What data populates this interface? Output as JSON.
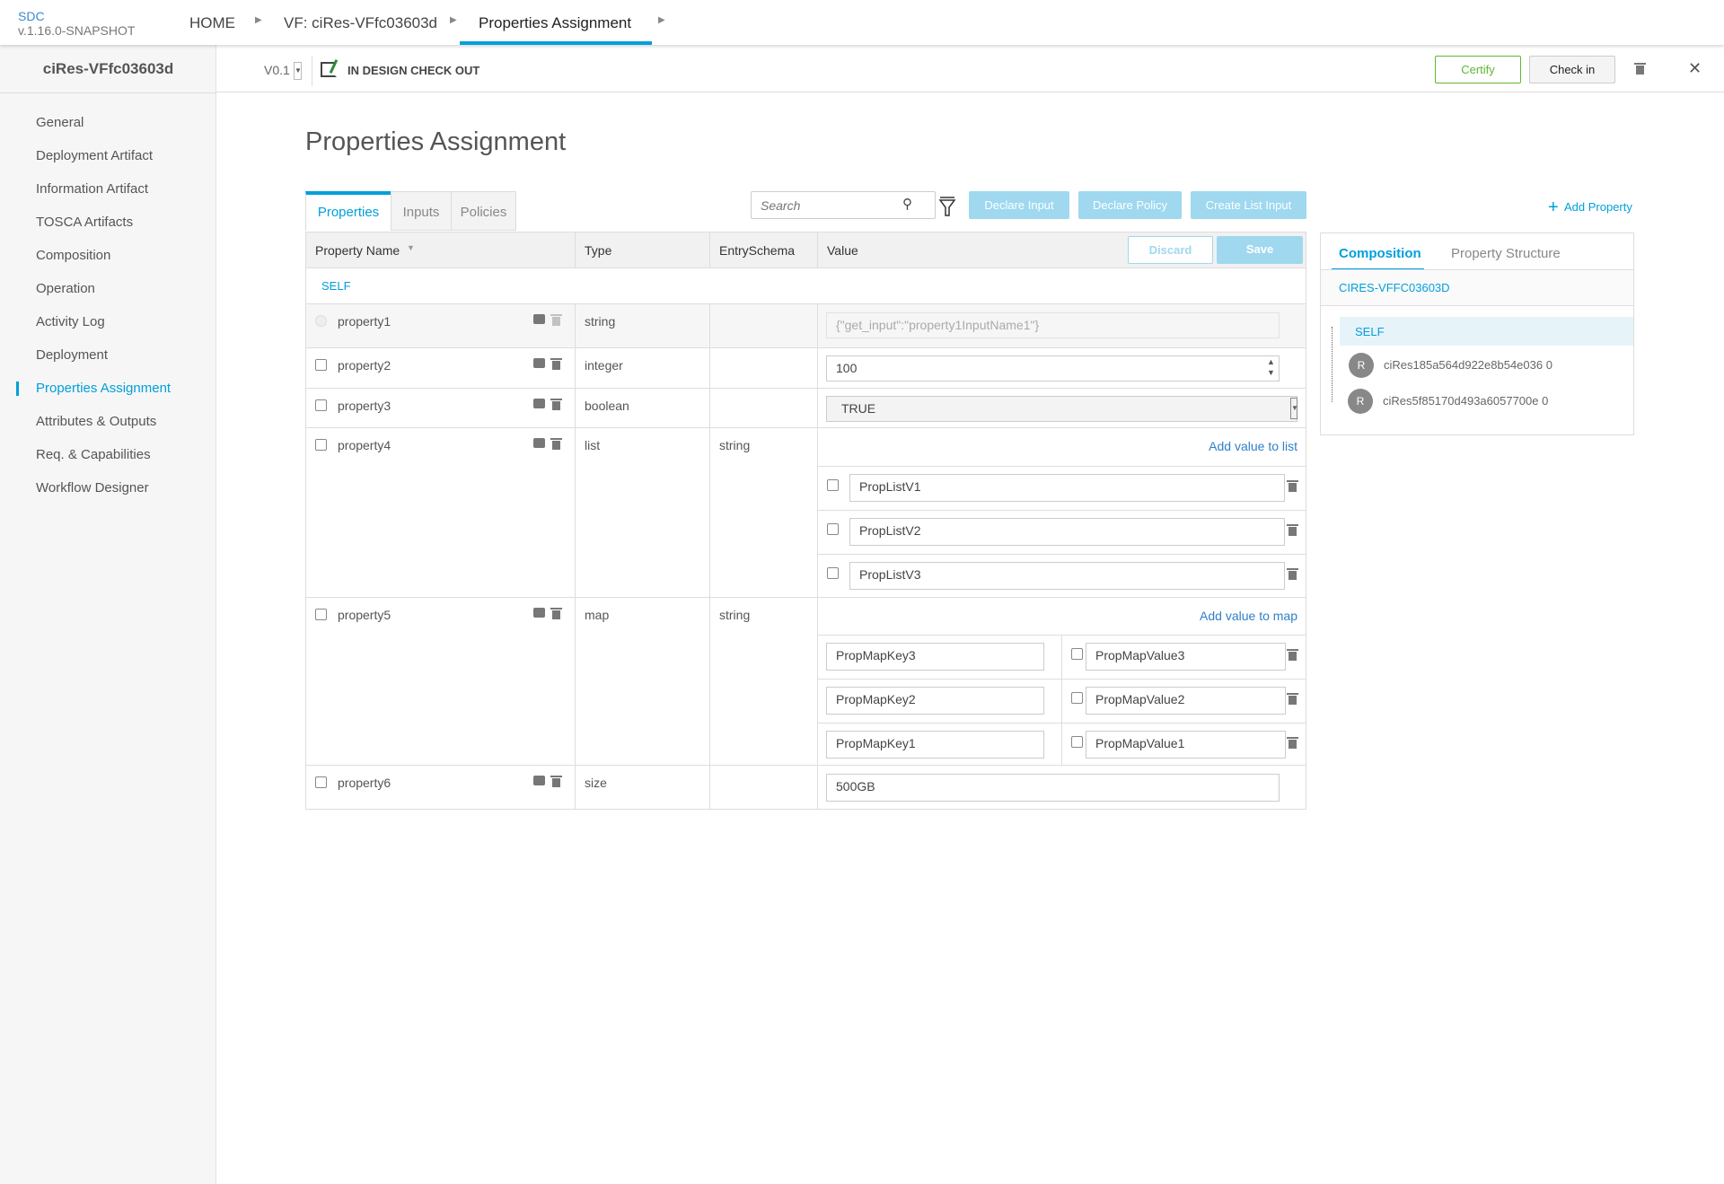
{
  "app": {
    "name": "SDC",
    "version": "v.1.16.0-SNAPSHOT"
  },
  "breadcrumb": [
    "HOME",
    "VF: ciRes-VFfc03603d",
    "Properties Assignment"
  ],
  "sidebar": {
    "title": "ciRes-VFfc03603d",
    "items": [
      "General",
      "Deployment Artifact",
      "Information Artifact",
      "TOSCA Artifacts",
      "Composition",
      "Operation",
      "Activity Log",
      "Deployment",
      "Properties Assignment",
      "Attributes & Outputs",
      "Req. & Capabilities",
      "Workflow Designer"
    ],
    "active": "Properties Assignment"
  },
  "subbar": {
    "version": "V0.1",
    "status": "IN DESIGN CHECK OUT",
    "certify": "Certify",
    "checkin": "Check in"
  },
  "page": {
    "title": "Properties Assignment"
  },
  "tabs": [
    "Properties",
    "Inputs",
    "Policies"
  ],
  "search": {
    "placeholder": "Search"
  },
  "actions": {
    "declare_input": "Declare Input",
    "declare_policy": "Declare Policy",
    "create_list_input": "Create List Input",
    "add_property": "Add Property",
    "discard": "Discard",
    "save": "Save"
  },
  "table": {
    "headers": [
      "Property Name",
      "Type",
      "EntrySchema",
      "Value"
    ],
    "group": "SELF",
    "rows": [
      {
        "name": "property1",
        "type": "string",
        "schema": "",
        "value": "{\"get_input\":\"property1InputName1\"}"
      },
      {
        "name": "property2",
        "type": "integer",
        "schema": "",
        "value": "100"
      },
      {
        "name": "property3",
        "type": "boolean",
        "schema": "",
        "value": "TRUE"
      },
      {
        "name": "property4",
        "type": "list",
        "schema": "string",
        "add_label": "Add value to list",
        "items": [
          "PropListV1",
          "PropListV2",
          "PropListV3"
        ]
      },
      {
        "name": "property5",
        "type": "map",
        "schema": "string",
        "add_label": "Add value to map",
        "entries": [
          {
            "key": "PropMapKey3",
            "value": "PropMapValue3"
          },
          {
            "key": "PropMapKey2",
            "value": "PropMapValue2"
          },
          {
            "key": "PropMapKey1",
            "value": "PropMapValue1"
          }
        ]
      },
      {
        "name": "property6",
        "type": "size",
        "schema": "",
        "value": "500GB"
      }
    ]
  },
  "right_panel": {
    "tabs": [
      "Composition",
      "Property Structure"
    ],
    "header": "CIRES-VFFC03603D",
    "tree": [
      {
        "label": "SELF"
      },
      {
        "avatar": "R",
        "label": "ciRes185a564d922e8b54e036 0"
      },
      {
        "avatar": "R",
        "label": "ciRes5f85170d493a6057700e 0"
      }
    ]
  },
  "colors": {
    "accent": "#009fdb",
    "certify": "#5fb832",
    "button_disabled": "#9fd8ef"
  }
}
